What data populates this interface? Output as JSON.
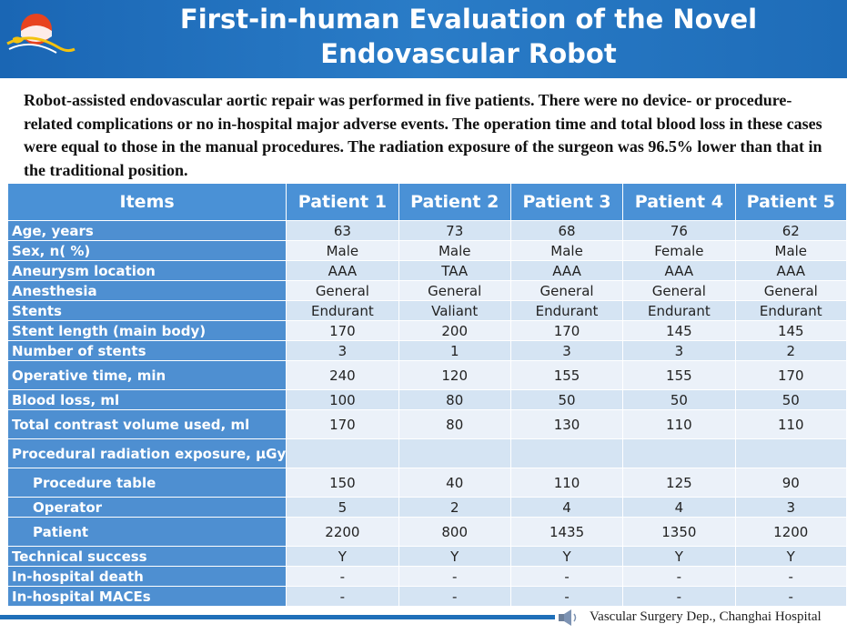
{
  "header": {
    "title_line1": "First-in-human Evaluation of the Novel",
    "title_line2": "Endovascular Robot"
  },
  "summary": "Robot-assisted endovascular aortic repair was performed in five patients. There were no device- or procedure-related complications or no in-hospital major adverse events. The operation time and total blood loss in these cases were equal to those in the manual procedures. The radiation exposure of the surgeon was 96.5% lower than that in the traditional position.",
  "table": {
    "headers": [
      "Items",
      "Patient 1",
      "Patient 2",
      "Patient 3",
      "Patient 4",
      "Patient 5"
    ],
    "rows": [
      {
        "label": "Age, years",
        "values": [
          "63",
          "73",
          "68",
          "76",
          "62"
        ]
      },
      {
        "label": "Sex, n( %)",
        "values": [
          "Male",
          "Male",
          "Male",
          "Female",
          "Male"
        ]
      },
      {
        "label": "Aneurysm location",
        "values": [
          "AAA",
          "TAA",
          "AAA",
          "AAA",
          "AAA"
        ]
      },
      {
        "label": "Anesthesia",
        "values": [
          "General",
          "General",
          "General",
          "General",
          "General"
        ]
      },
      {
        "label": "Stents",
        "values": [
          "Endurant",
          "Valiant",
          "Endurant",
          "Endurant",
          "Endurant"
        ]
      },
      {
        "label": "Stent length (main body)",
        "values": [
          "170",
          "200",
          "170",
          "145",
          "145"
        ]
      },
      {
        "label": "Number of stents",
        "values": [
          "3",
          "1",
          "3",
          "3",
          "2"
        ]
      },
      {
        "label": "Operative time, min",
        "values": [
          "240",
          "120",
          "155",
          "155",
          "170"
        ]
      },
      {
        "label": "Blood loss, ml",
        "values": [
          "100",
          "80",
          "50",
          "50",
          "50"
        ]
      },
      {
        "label": "Total contrast volume used, ml",
        "values": [
          "170",
          "80",
          "130",
          "110",
          "110"
        ]
      },
      {
        "label": "Procedural radiation exposure, μGy",
        "values": [
          "",
          "",
          "",
          "",
          ""
        ]
      },
      {
        "label": "Procedure table",
        "values": [
          "150",
          "40",
          "110",
          "125",
          "90"
        ]
      },
      {
        "label": "Operator",
        "values": [
          "5",
          "2",
          "4",
          "4",
          "3"
        ]
      },
      {
        "label": "Patient",
        "values": [
          "2200",
          "800",
          "1435",
          "1350",
          "1200"
        ]
      },
      {
        "label": "Technical success",
        "values": [
          "Y",
          "Y",
          "Y",
          "Y",
          "Y"
        ]
      },
      {
        "label": "In-hospital death",
        "values": [
          "-",
          "-",
          "-",
          "-",
          "-"
        ]
      },
      {
        "label": "In-hospital MACEs",
        "values": [
          "-",
          "-",
          "-",
          "-",
          "-"
        ]
      }
    ]
  },
  "footer": {
    "text": "Vascular Surgery Dep., Changhai Hospital",
    "icon": "speaker-icon"
  },
  "colors": {
    "header_blue": "#1f6fb9",
    "label_cell_blue": "#4e8fd1",
    "header_cell_blue": "#4a91d6",
    "row_odd": "#d5e4f3",
    "row_even": "#ebf1f9"
  }
}
